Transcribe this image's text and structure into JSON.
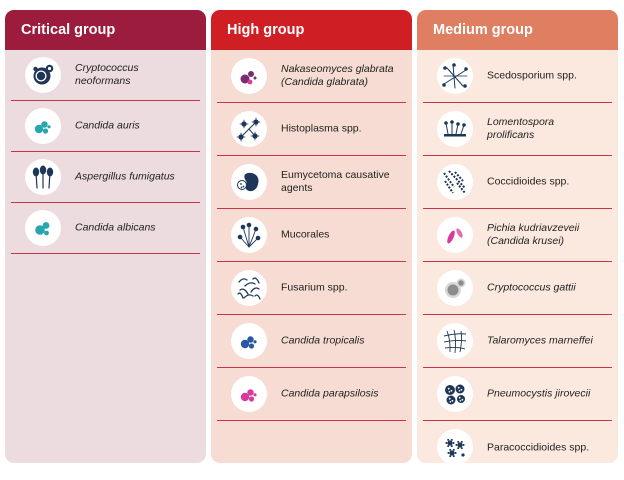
{
  "colors": {
    "critical_header": "#9b1c3c",
    "critical_body": "#ecdcdf",
    "high_header": "#cf1f24",
    "high_body": "#f6dcd2",
    "medium_header": "#e07e62",
    "medium_body": "#fbe9df",
    "divider": "#c8354a",
    "icon_navy": "#1e3658",
    "icon_teal": "#26a6ad",
    "icon_purple": "#7b2b6e",
    "icon_magenta": "#d83a9c",
    "icon_blue": "#2a56a6",
    "icon_gray": "#8c8c8c"
  },
  "groups": [
    {
      "title": "Critical group",
      "items": [
        {
          "label": "Cryptococcus\nneoformans",
          "italic": true,
          "icon": "cryptococcus-cells-icon"
        },
        {
          "label": "Candida auris",
          "italic": true,
          "icon": "teal-yeast-cells-icon"
        },
        {
          "label": "Aspergillus fumigatus",
          "italic": true,
          "icon": "aspergillus-conidiophores-icon"
        },
        {
          "label": "Candida albicans",
          "italic": true,
          "icon": "teal-budding-yeast-icon"
        }
      ]
    },
    {
      "title": "High group",
      "items": [
        {
          "label": "Nakaseomyces glabrata\n(Candida glabrata)",
          "italic": true,
          "icon": "purple-yeast-cells-icon"
        },
        {
          "label": "Histoplasma spp.",
          "italic": false,
          "icon": "histoplasma-spores-icon"
        },
        {
          "label": "Eumycetoma causative\nagents",
          "italic": false,
          "icon": "eumycetoma-grain-icon"
        },
        {
          "label": "Mucorales",
          "italic": false,
          "icon": "mucorales-sporangia-icon"
        },
        {
          "label": "Fusarium spp.",
          "italic": false,
          "icon": "fusarium-hyphae-icon"
        },
        {
          "label": "Candida tropicalis",
          "italic": true,
          "icon": "blue-yeast-cells-icon"
        },
        {
          "label": "Candida parapsilosis",
          "italic": true,
          "icon": "magenta-yeast-cells-icon"
        }
      ]
    },
    {
      "title": "Medium group",
      "items": [
        {
          "label": "Scedosporium spp.",
          "italic": false,
          "icon": "scedosporium-hyphae-icon"
        },
        {
          "label": "Lomentospora\nprolificans",
          "italic": true,
          "icon": "lomentospora-conidia-icon"
        },
        {
          "label": "Coccidioides spp.",
          "italic": false,
          "icon": "coccidioides-arthroconidia-icon"
        },
        {
          "label": "Pichia kudriavzeveii\n(Candida krusei)",
          "italic": true,
          "icon": "elongated-yeast-icon"
        },
        {
          "label": "Cryptococcus gattii",
          "italic": true,
          "icon": "gray-encapsulated-yeast-icon"
        },
        {
          "label": "Talaromyces marneffei",
          "italic": true,
          "icon": "talaromyces-hyphae-icon"
        },
        {
          "label": "Pneumocystis jirovecii",
          "italic": true,
          "icon": "pneumocystis-cysts-icon"
        },
        {
          "label": "Paracoccidioides spp.",
          "italic": false,
          "icon": "paracoccidioides-yeast-icon"
        }
      ]
    }
  ]
}
